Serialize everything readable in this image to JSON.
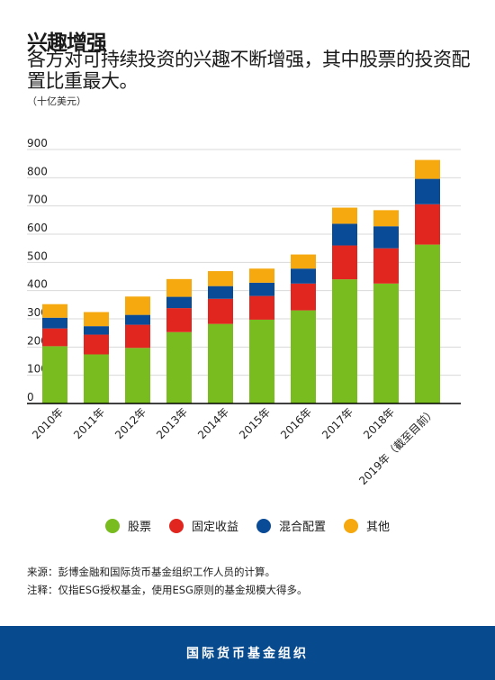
{
  "header": {
    "title": "兴趣增强",
    "subtitle": "各方对可持续投资的兴趣不断增强，其中股票的投资配置比重最大。",
    "unit": "（十亿美元）"
  },
  "chart_data": {
    "type": "bar",
    "stacked": true,
    "categories": [
      "2010年",
      "2011年",
      "2012年",
      "2013年",
      "2014年",
      "2015年",
      "2016年",
      "2017年",
      "2018年",
      "2019年（截至目前）"
    ],
    "series": [
      {
        "name": "股票",
        "color": "#78bc1f",
        "values": [
          203,
          174,
          197,
          253,
          282,
          297,
          330,
          440,
          425,
          563
        ]
      },
      {
        "name": "固定收益",
        "color": "#e0261f",
        "values": [
          63,
          70,
          82,
          85,
          89,
          84,
          95,
          120,
          125,
          143
        ]
      },
      {
        "name": "混合配置",
        "color": "#0a4b97",
        "values": [
          38,
          30,
          35,
          40,
          45,
          47,
          53,
          77,
          78,
          90
        ]
      },
      {
        "name": "其他",
        "color": "#f5a90f",
        "values": [
          48,
          50,
          65,
          63,
          53,
          50,
          50,
          57,
          57,
          67
        ]
      }
    ],
    "yticks": [
      0,
      100,
      200,
      300,
      400,
      500,
      600,
      700,
      800,
      900
    ],
    "ylim": [
      0,
      900
    ],
    "grid": true,
    "legend_position": "bottom"
  },
  "notes": {
    "source": "来源：彭博金融和国际货币基金组织工作人员的计算。",
    "note": "注释：仅指ESG授权基金，使用ESG原则的基金规模大得多。"
  },
  "footer": {
    "label": "国际货币基金组织"
  }
}
